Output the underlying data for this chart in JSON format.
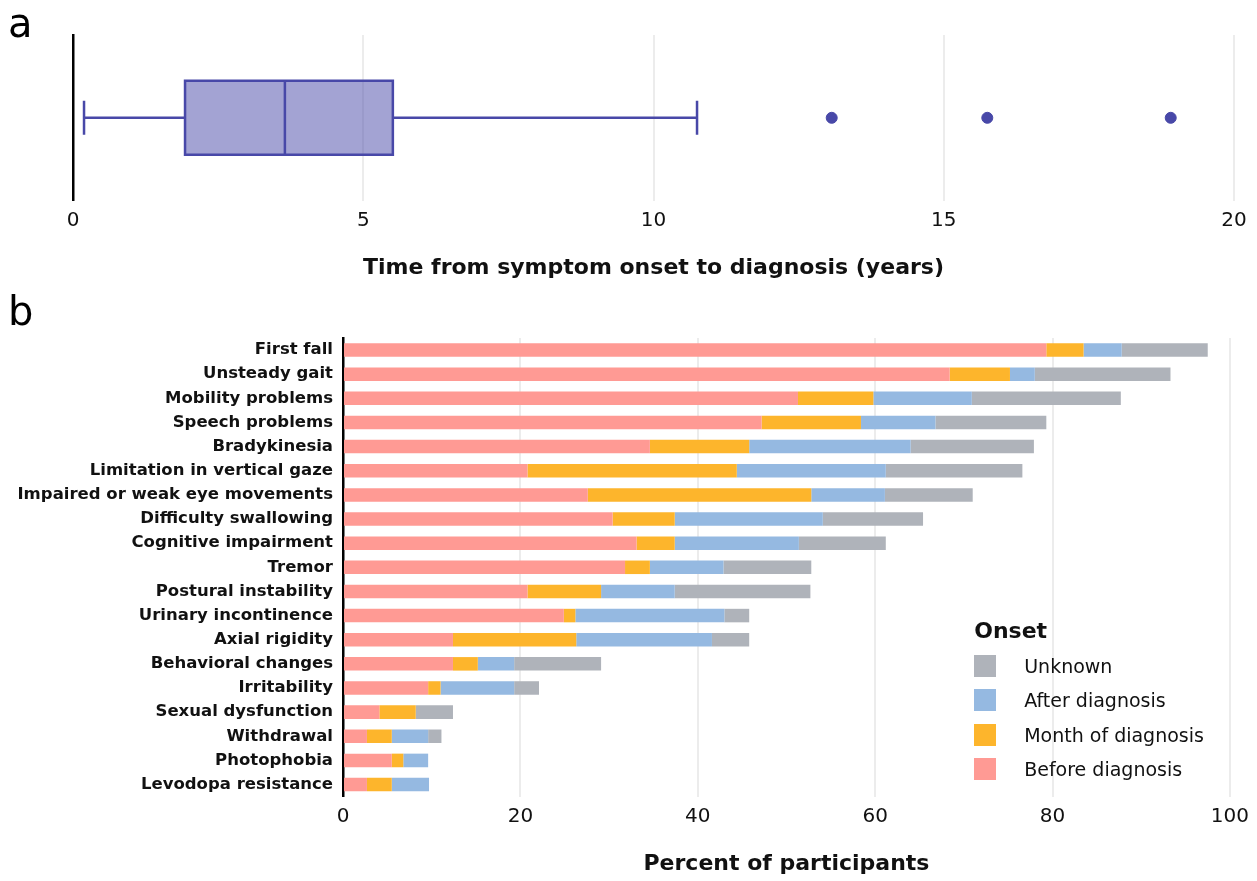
{
  "chart_data": [
    {
      "type": "box",
      "title": "a",
      "orientation": "horizontal",
      "xlabel": "Time from symptom onset to diagnosis (years)",
      "categories": [
        null
      ],
      "xlim": [
        0,
        20
      ],
      "xticks": [
        0,
        5,
        10,
        15,
        20
      ],
      "grid": "x",
      "series": [
        {
          "color": "#4848a8",
          "boxes": [
            {
              "low": 0.19,
              "q1": 1.93,
              "median": 3.65,
              "q3": 5.51,
              "high": 10.75,
              "outliers": [
                13.07,
                15.75,
                18.91
              ]
            }
          ]
        }
      ]
    },
    {
      "type": "bar",
      "title": "b",
      "orientation": "horizontal",
      "stacked": true,
      "xlabel": "Percent of participants",
      "xlim": [
        0,
        100
      ],
      "xticks": [
        0,
        20,
        40,
        60,
        80,
        100
      ],
      "grid": "x",
      "legend": "bottom right",
      "legend_title": "Onset",
      "categories": [
        "First fall",
        "Unsteady gait",
        "Mobility problems",
        "Speech problems",
        "Bradykinesia",
        "Limitation in vertical gaze",
        "Impaired or weak eye movements",
        "Difficulty swallowing",
        "Cognitive impairment",
        "Tremor",
        "Postural instability",
        "Urinary incontinence",
        "Axial rigidity",
        "Behavioral changes",
        "Irritability",
        "Sexual dysfunction",
        "Withdrawal",
        "Photophobia",
        "Levodopa resistance"
      ],
      "series": [
        {
          "name": "Before diagnosis",
          "color": "#ff9a94",
          "values": [
            79.3,
            68.4,
            51.3,
            47.2,
            34.6,
            20.8,
            27.6,
            30.4,
            33.1,
            31.8,
            20.8,
            24.9,
            12.4,
            12.4,
            9.6,
            4.1,
            2.7,
            5.5,
            2.7
          ]
        },
        {
          "name": "Month of diagnosis",
          "color": "#fdb52c",
          "values": [
            4.2,
            6.8,
            8.5,
            11.2,
            11.2,
            23.6,
            25.2,
            7.0,
            4.3,
            2.8,
            8.3,
            1.3,
            13.9,
            2.8,
            1.4,
            4.1,
            2.8,
            1.3,
            2.8
          ]
        },
        {
          "name": "After diagnosis",
          "color": "#95b9e1",
          "values": [
            4.3,
            2.8,
            11.1,
            8.4,
            18.2,
            16.8,
            8.3,
            16.7,
            14.0,
            8.3,
            8.3,
            16.8,
            15.3,
            4.1,
            8.3,
            0,
            4.1,
            2.8,
            4.2
          ]
        },
        {
          "name": "Unknown",
          "color": "#afb3ba",
          "values": [
            9.7,
            15.3,
            16.8,
            12.5,
            13.9,
            15.4,
            9.9,
            11.3,
            9.8,
            9.9,
            15.3,
            2.8,
            4.2,
            9.8,
            2.8,
            4.2,
            1.5,
            0,
            0
          ]
        }
      ]
    }
  ]
}
